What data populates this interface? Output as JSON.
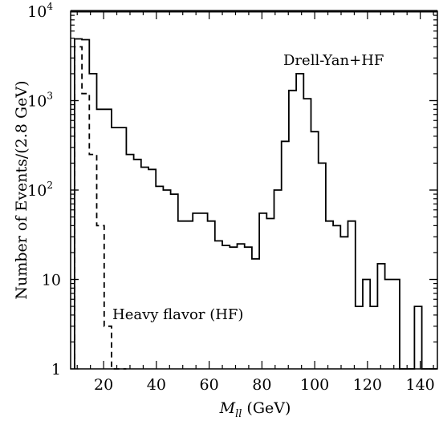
{
  "chart_data": {
    "type": "line",
    "title": "",
    "xlabel": {
      "main": "M",
      "sub": "ll",
      "unit": " (GeV)"
    },
    "ylabel": "Number of Events/(2.8 GeV)",
    "xlim": [
      7.5,
      146.5
    ],
    "ylim": [
      1,
      10000
    ],
    "yscale": "log",
    "grid": false,
    "x_ticks": [
      20,
      40,
      60,
      80,
      100,
      120,
      140
    ],
    "x_tick_labels": [
      "20",
      "40",
      "60",
      "80",
      "100",
      "120",
      "140"
    ],
    "y_ticks": [
      {
        "value": 1,
        "label": "1",
        "sup": ""
      },
      {
        "value": 10,
        "label": "10",
        "sup": ""
      },
      {
        "value": 100,
        "label": "10",
        "sup": "2"
      },
      {
        "value": 1000,
        "label": "10",
        "sup": "3"
      },
      {
        "value": 10000,
        "label": "10",
        "sup": "4"
      }
    ],
    "series": [
      {
        "name": "Drell-Yan+HF",
        "style": "solid",
        "bin_edges": [
          9.0,
          11.8,
          14.6,
          17.4,
          20.2,
          23.0,
          25.8,
          28.6,
          31.4,
          34.2,
          37.0,
          39.8,
          42.6,
          45.4,
          48.2,
          51.0,
          53.8,
          56.6,
          59.4,
          62.2,
          65.0,
          67.8,
          70.6,
          73.4,
          76.2,
          79.0,
          81.8,
          84.6,
          87.4,
          90.2,
          93.0,
          95.8,
          98.6,
          101.4,
          104.2,
          107.0,
          109.8,
          112.6,
          115.4,
          118.2,
          121.0,
          123.8,
          126.6,
          129.4,
          132.2,
          135.0,
          137.8,
          140.6,
          143.4,
          146.2
        ],
        "values": [
          4900,
          4800,
          2000,
          800,
          800,
          500,
          500,
          250,
          220,
          180,
          170,
          110,
          100,
          90,
          45,
          45,
          55,
          55,
          45,
          27,
          24,
          23,
          25,
          23,
          17,
          55,
          48,
          100,
          350,
          1300,
          2000,
          1050,
          450,
          200,
          45,
          40,
          30,
          45,
          5,
          10,
          5,
          15,
          10,
          10,
          1,
          1,
          5,
          1,
          1
        ]
      },
      {
        "name": "Heavy flavor (HF)",
        "style": "dashed",
        "bin_edges": [
          9.0,
          11.8,
          14.6,
          17.4,
          20.2,
          23.0,
          25.8,
          28.6
        ],
        "values": [
          4000,
          1200,
          250,
          40,
          3,
          1,
          1
        ]
      }
    ],
    "annotations": [
      "Drell-Yan+HF",
      "Heavy flavor (HF)"
    ]
  }
}
